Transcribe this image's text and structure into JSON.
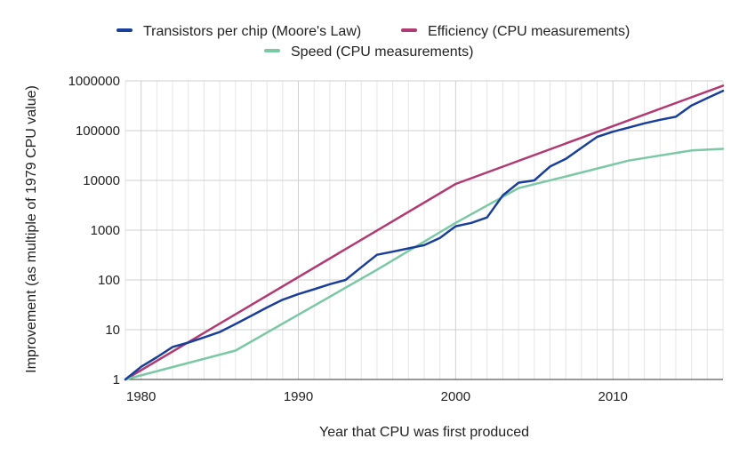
{
  "chart_data": {
    "type": "line",
    "title": "",
    "xlabel": "Year that CPU was first produced",
    "ylabel": "Improvement (as multiple of 1979 CPU value)",
    "x_scale": "linear",
    "y_scale": "log",
    "xlim": [
      1979,
      2017
    ],
    "ylim": [
      1,
      1000000
    ],
    "x_ticks": [
      1980,
      1990,
      2000,
      2010
    ],
    "x_tick_labels": [
      "1980",
      "1990",
      "2000",
      "2010"
    ],
    "y_ticks": [
      1,
      10,
      100,
      1000,
      10000,
      100000,
      1000000
    ],
    "y_tick_labels": [
      "1",
      "10",
      "100",
      "1000",
      "10000",
      "100000",
      "1000000"
    ],
    "grid": true,
    "minor_grid_x": "yearly",
    "legend_position": "top",
    "series": [
      {
        "name": "Transistors per chip (Moore's Law)",
        "color": "#1a3f9a",
        "points": [
          [
            1979,
            1
          ],
          [
            1980,
            1.8
          ],
          [
            1981,
            2.8
          ],
          [
            1982,
            4.5
          ],
          [
            1983,
            5.5
          ],
          [
            1984,
            7
          ],
          [
            1985,
            9
          ],
          [
            1986,
            13
          ],
          [
            1987,
            19
          ],
          [
            1988,
            28
          ],
          [
            1989,
            40
          ],
          [
            1990,
            52
          ],
          [
            1991,
            65
          ],
          [
            1992,
            82
          ],
          [
            1993,
            100
          ],
          [
            1994,
            180
          ],
          [
            1995,
            320
          ],
          [
            1996,
            370
          ],
          [
            1997,
            430
          ],
          [
            1998,
            500
          ],
          [
            1999,
            700
          ],
          [
            2000,
            1200
          ],
          [
            2001,
            1400
          ],
          [
            2002,
            1800
          ],
          [
            2003,
            5000
          ],
          [
            2004,
            9000
          ],
          [
            2005,
            10000
          ],
          [
            2006,
            19000
          ],
          [
            2007,
            27000
          ],
          [
            2008,
            45000
          ],
          [
            2009,
            75000
          ],
          [
            2010,
            95000
          ],
          [
            2011,
            115000
          ],
          [
            2012,
            140000
          ],
          [
            2013,
            165000
          ],
          [
            2014,
            190000
          ],
          [
            2015,
            320000
          ],
          [
            2016,
            450000
          ],
          [
            2017,
            630000
          ]
        ]
      },
      {
        "name": "Efficiency (CPU measurements)",
        "color": "#b23a72",
        "points": [
          [
            1979,
            1
          ],
          [
            2000,
            8500
          ],
          [
            2017,
            800000
          ]
        ]
      },
      {
        "name": "Speed (CPU measurements)",
        "color": "#7bc8a4",
        "points": [
          [
            1979,
            1
          ],
          [
            1986,
            3.8
          ],
          [
            1995,
            160
          ],
          [
            2000,
            1400
          ],
          [
            2004,
            7000
          ],
          [
            2007,
            12000
          ],
          [
            2011,
            25000
          ],
          [
            2015,
            40000
          ],
          [
            2017,
            43000
          ]
        ]
      }
    ]
  }
}
